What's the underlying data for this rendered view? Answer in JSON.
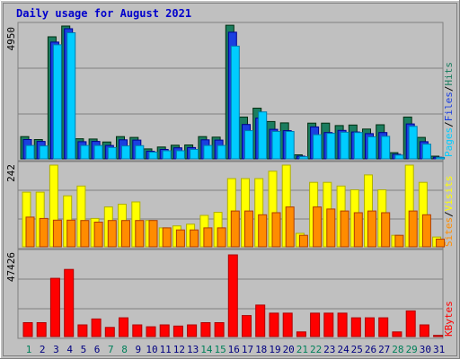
{
  "chart_data": [
    {
      "type": "bar",
      "panel": "hits-files-pages",
      "title": "Daily usage for August 2021",
      "categories": [
        "1",
        "2",
        "3",
        "4",
        "5",
        "6",
        "7",
        "8",
        "9",
        "10",
        "11",
        "12",
        "13",
        "14",
        "15",
        "16",
        "17",
        "18",
        "19",
        "20",
        "21",
        "22",
        "23",
        "24",
        "25",
        "26",
        "27",
        "28",
        "29",
        "30",
        "31"
      ],
      "weekend_categories": [
        "1",
        "7",
        "8",
        "14",
        "15",
        "21",
        "22",
        "28",
        "29"
      ],
      "ymax_label": "4950",
      "ylim": [
        0,
        4950
      ],
      "series": [
        {
          "name": "Hits",
          "color": "#1b7d5f",
          "values": [
            830,
            720,
            4550,
            4950,
            750,
            740,
            630,
            830,
            800,
            370,
            440,
            510,
            520,
            830,
            810,
            4980,
            1560,
            1890,
            1390,
            1340,
            150,
            1330,
            1330,
            1240,
            1260,
            1110,
            1270,
            230,
            1560,
            800,
            100
          ]
        },
        {
          "name": "Files",
          "color": "#1a3fe0",
          "values": [
            720,
            650,
            4350,
            4850,
            640,
            650,
            500,
            710,
            700,
            280,
            350,
            410,
            420,
            710,
            700,
            4720,
            1280,
            1520,
            1100,
            1050,
            100,
            1190,
            980,
            1060,
            1000,
            940,
            980,
            170,
            1300,
            640,
            60
          ]
        },
        {
          "name": "Pages",
          "color": "#00ccff",
          "values": [
            500,
            480,
            4250,
            4700,
            500,
            500,
            420,
            480,
            490,
            250,
            300,
            300,
            350,
            500,
            500,
            4200,
            1050,
            1750,
            1020,
            1020,
            80,
            900,
            950,
            990,
            980,
            820,
            840,
            140,
            1210,
            550,
            55
          ]
        }
      ],
      "legend": [
        "Pages",
        "/",
        "Files",
        "/",
        "Hits"
      ]
    },
    {
      "type": "bar",
      "panel": "visits-sites",
      "categories": [
        "1",
        "2",
        "3",
        "4",
        "5",
        "6",
        "7",
        "8",
        "9",
        "10",
        "11",
        "12",
        "13",
        "14",
        "15",
        "16",
        "17",
        "18",
        "19",
        "20",
        "21",
        "22",
        "23",
        "24",
        "25",
        "26",
        "27",
        "28",
        "29",
        "30",
        "31"
      ],
      "ymax_label": "242",
      "ylim": [
        0,
        242
      ],
      "series": [
        {
          "name": "Visits",
          "color": "#ffff00",
          "values": [
            162,
            162,
            242,
            151,
            180,
            84,
            118,
            126,
            133,
            78,
            56,
            62,
            67,
            93,
            102,
            202,
            202,
            202,
            224,
            242,
            40,
            191,
            191,
            180,
            169,
            213,
            169,
            34,
            242,
            191,
            29
          ]
        },
        {
          "name": "Sites",
          "color": "#ff8c00",
          "values": [
            88,
            84,
            79,
            79,
            78,
            73,
            78,
            78,
            78,
            78,
            56,
            50,
            50,
            56,
            56,
            106,
            106,
            95,
            101,
            118,
            34,
            118,
            112,
            106,
            101,
            106,
            101,
            34,
            106,
            95,
            23
          ]
        }
      ],
      "legend": [
        "Sites",
        "/",
        "Visits"
      ]
    },
    {
      "type": "bar",
      "panel": "kbytes",
      "categories": [
        "1",
        "2",
        "3",
        "4",
        "5",
        "6",
        "7",
        "8",
        "9",
        "10",
        "11",
        "12",
        "13",
        "14",
        "15",
        "16",
        "17",
        "18",
        "19",
        "20",
        "21",
        "22",
        "23",
        "24",
        "25",
        "26",
        "27",
        "28",
        "29",
        "30",
        "31"
      ],
      "ymax_label": "47426",
      "ylim": [
        0,
        47426
      ],
      "series": [
        {
          "name": "KBytes",
          "color": "#ff0000",
          "values": [
            8100,
            8100,
            33800,
            39000,
            6800,
            10200,
            5300,
            10900,
            6800,
            5700,
            6800,
            6100,
            6800,
            8100,
            8100,
            47400,
            12200,
            18300,
            13600,
            13600,
            2700,
            13600,
            13600,
            13600,
            10900,
            10900,
            10900,
            2700,
            14900,
            6800,
            700
          ]
        }
      ],
      "legend": [
        "KBytes"
      ]
    }
  ]
}
